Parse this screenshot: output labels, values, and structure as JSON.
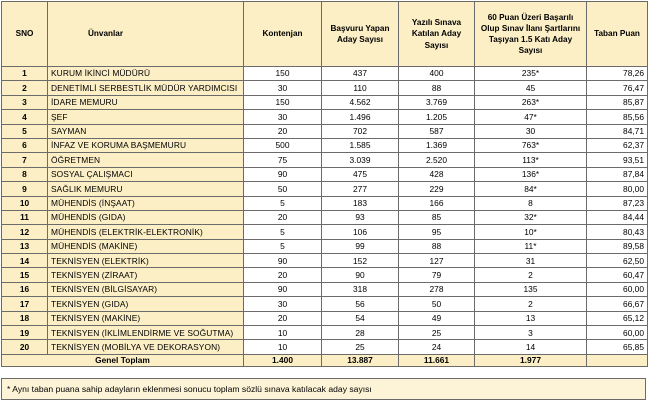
{
  "table": {
    "headers": [
      "SNO",
      "Ünvanlar",
      "Kontenjan",
      "Başvuru Yapan Aday Sayısı",
      "Yazılı Sınava Katılan Aday Sayısı",
      "60 Puan Üzeri Başarılı Olup Sınav İlanı Şartlarını Taşıyan 1.5 Katı Aday Sayısı",
      "Taban Puan"
    ],
    "rows": [
      [
        "1",
        "KURUM İKİNCİ MÜDÜRÜ",
        "150",
        "437",
        "400",
        "235*",
        "78,26"
      ],
      [
        "2",
        "DENETİMLİ SERBESTLİK MÜDÜR YARDIMCISI",
        "30",
        "110",
        "88",
        "45",
        "76,47"
      ],
      [
        "3",
        "İDARE MEMURU",
        "150",
        "4.562",
        "3.769",
        "263*",
        "85,87"
      ],
      [
        "4",
        "ŞEF",
        "30",
        "1.496",
        "1.205",
        "47*",
        "85,56"
      ],
      [
        "5",
        "SAYMAN",
        "20",
        "702",
        "587",
        "30",
        "84,71"
      ],
      [
        "6",
        "İNFAZ VE KORUMA BAŞMEMURU",
        "500",
        "1.585",
        "1.369",
        "763*",
        "62,37"
      ],
      [
        "7",
        "ÖĞRETMEN",
        "75",
        "3.039",
        "2.520",
        "113*",
        "93,51"
      ],
      [
        "8",
        "SOSYAL ÇALIŞMACI",
        "90",
        "475",
        "428",
        "136*",
        "87,84"
      ],
      [
        "9",
        "SAĞLIK MEMURU",
        "50",
        "277",
        "229",
        "84*",
        "80,00"
      ],
      [
        "10",
        "MÜHENDİS (İNŞAAT)",
        "5",
        "183",
        "166",
        "8",
        "87,23"
      ],
      [
        "11",
        "MÜHENDİS (GIDA)",
        "20",
        "93",
        "85",
        "32*",
        "84,44"
      ],
      [
        "12",
        "MÜHENDİS (ELEKTRİK-ELEKTRONİK)",
        "5",
        "106",
        "95",
        "10*",
        "80,43"
      ],
      [
        "13",
        "MÜHENDİS (MAKİNE)",
        "5",
        "99",
        "88",
        "11*",
        "89,58"
      ],
      [
        "14",
        "TEKNİSYEN (ELEKTRİK)",
        "90",
        "152",
        "127",
        "31",
        "62,50"
      ],
      [
        "15",
        "TEKNİSYEN (ZİRAAT)",
        "20",
        "90",
        "79",
        "2",
        "60,47"
      ],
      [
        "16",
        "TEKNİSYEN (BİLGİSAYAR)",
        "90",
        "318",
        "278",
        "135",
        "60,00"
      ],
      [
        "17",
        "TEKNİSYEN (GIDA)",
        "30",
        "56",
        "50",
        "2",
        "66,67"
      ],
      [
        "18",
        "TEKNİSYEN (MAKİNE)",
        "20",
        "54",
        "49",
        "13",
        "65,12"
      ],
      [
        "19",
        "TEKNİSYEN (İKLİMLENDİRME VE SOĞUTMA)",
        "10",
        "28",
        "25",
        "3",
        "60,00"
      ],
      [
        "20",
        "TEKNİSYEN (MOBİLYA VE DEKORASYON)",
        "10",
        "25",
        "24",
        "14",
        "65,85"
      ]
    ],
    "total": {
      "label": "Genel Toplam",
      "values": [
        "1.400",
        "13.887",
        "11.661",
        "1.977"
      ]
    }
  },
  "footnote": "* Aynı taban puana sahip adayların eklenmesi sonucu toplam sözlü sınava katılacak aday sayısı"
}
